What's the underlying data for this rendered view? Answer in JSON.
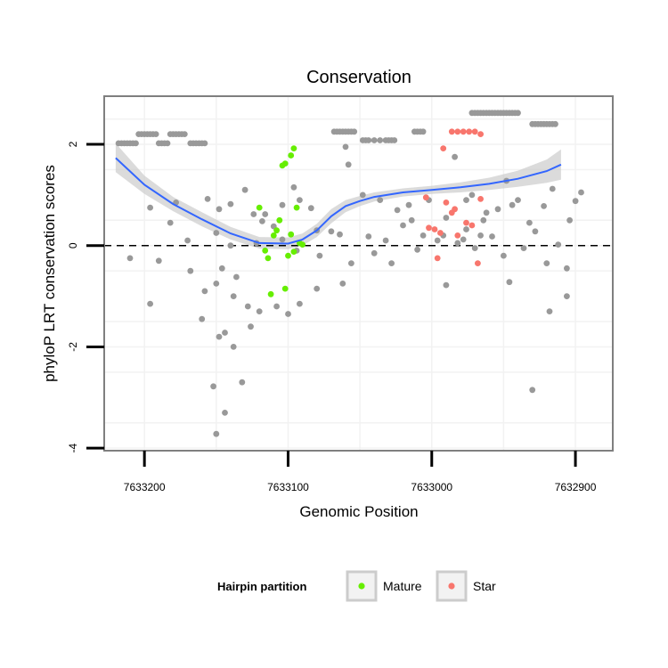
{
  "chart_data": {
    "type": "scatter",
    "title": "Conservation",
    "xlabel": "Genomic Position",
    "ylabel": "phyloP LRT conservation scores",
    "x_reversed": true,
    "xlim": [
      7633228,
      7632874
    ],
    "ylim": [
      -4.05,
      2.95
    ],
    "x_ticks": [
      7633200,
      7633100,
      7633000,
      7632900
    ],
    "x_tick_labels": [
      "7633200",
      "7633100",
      "7633000",
      "7632900"
    ],
    "y_ticks": [
      2,
      0,
      -2,
      -4
    ],
    "y_tick_labels": [
      "2",
      "0",
      "-2",
      "-4"
    ],
    "reference_line": {
      "y": 0,
      "style": "dashed"
    },
    "colors": {
      "other": "#999999",
      "Mature": "#66ee00",
      "Star": "#f8766d",
      "smooth": "#3366ff",
      "band": "#cccccc",
      "panel_border": "#7f7f7f"
    },
    "legend": {
      "title": "Hairpin partition",
      "position": "bottom",
      "entries": [
        "Mature",
        "Star"
      ]
    },
    "smooth": {
      "x": [
        7633220,
        7633200,
        7633180,
        7633160,
        7633140,
        7633120,
        7633100,
        7633090,
        7633080,
        7633070,
        7633060,
        7633050,
        7633040,
        7633020,
        7633000,
        7632980,
        7632960,
        7632940,
        7632920,
        7632910
      ],
      "y": [
        1.73,
        1.2,
        0.82,
        0.52,
        0.24,
        0.05,
        0.04,
        0.12,
        0.3,
        0.58,
        0.78,
        0.88,
        0.96,
        1.05,
        1.1,
        1.15,
        1.22,
        1.32,
        1.47,
        1.6
      ],
      "lower": [
        1.45,
        1.02,
        0.68,
        0.38,
        0.12,
        -0.06,
        -0.07,
        0.0,
        0.17,
        0.44,
        0.66,
        0.78,
        0.87,
        0.97,
        1.02,
        1.05,
        1.1,
        1.16,
        1.24,
        1.3
      ],
      "upper": [
        2.02,
        1.38,
        0.96,
        0.66,
        0.37,
        0.17,
        0.16,
        0.24,
        0.43,
        0.72,
        0.9,
        0.98,
        1.05,
        1.13,
        1.18,
        1.25,
        1.34,
        1.48,
        1.7,
        1.9
      ]
    },
    "series": [
      {
        "name": "Other",
        "points": [
          [
            7633218,
            2.02
          ],
          [
            7633216,
            2.02
          ],
          [
            7633214,
            2.02
          ],
          [
            7633212,
            2.02
          ],
          [
            7633210,
            2.02
          ],
          [
            7633208,
            2.02
          ],
          [
            7633206,
            2.02
          ],
          [
            7633204,
            2.2
          ],
          [
            7633202,
            2.2
          ],
          [
            7633200,
            2.2
          ],
          [
            7633198,
            2.2
          ],
          [
            7633196,
            2.2
          ],
          [
            7633194,
            2.2
          ],
          [
            7633192,
            2.2
          ],
          [
            7633190,
            2.02
          ],
          [
            7633188,
            2.02
          ],
          [
            7633186,
            2.02
          ],
          [
            7633184,
            2.02
          ],
          [
            7633182,
            2.2
          ],
          [
            7633180,
            2.2
          ],
          [
            7633178,
            2.2
          ],
          [
            7633176,
            2.2
          ],
          [
            7633174,
            2.2
          ],
          [
            7633172,
            2.2
          ],
          [
            7633168,
            2.02
          ],
          [
            7633166,
            2.02
          ],
          [
            7633164,
            2.02
          ],
          [
            7633162,
            2.02
          ],
          [
            7633160,
            2.02
          ],
          [
            7633158,
            2.02
          ],
          [
            7633012,
            2.25
          ],
          [
            7633010,
            2.25
          ],
          [
            7633008,
            2.25
          ],
          [
            7633006,
            2.25
          ],
          [
            7632972,
            2.62
          ],
          [
            7632970,
            2.62
          ],
          [
            7632968,
            2.62
          ],
          [
            7632966,
            2.62
          ],
          [
            7632964,
            2.62
          ],
          [
            7632962,
            2.62
          ],
          [
            7632960,
            2.62
          ],
          [
            7632958,
            2.62
          ],
          [
            7632956,
            2.62
          ],
          [
            7632954,
            2.62
          ],
          [
            7632952,
            2.62
          ],
          [
            7632950,
            2.62
          ],
          [
            7632948,
            2.62
          ],
          [
            7632946,
            2.62
          ],
          [
            7632944,
            2.62
          ],
          [
            7632942,
            2.62
          ],
          [
            7632940,
            2.62
          ],
          [
            7632930,
            2.4
          ],
          [
            7632928,
            2.4
          ],
          [
            7632926,
            2.4
          ],
          [
            7632924,
            2.4
          ],
          [
            7632922,
            2.4
          ],
          [
            7632920,
            2.4
          ],
          [
            7632918,
            2.4
          ],
          [
            7632916,
            2.4
          ],
          [
            7632914,
            2.4
          ],
          [
            7633068,
            2.25
          ],
          [
            7633066,
            2.25
          ],
          [
            7633064,
            2.25
          ],
          [
            7633062,
            2.25
          ],
          [
            7633060,
            2.25
          ],
          [
            7633058,
            2.25
          ],
          [
            7633056,
            2.25
          ],
          [
            7633054,
            2.25
          ],
          [
            7633048,
            2.08
          ],
          [
            7633046,
            2.08
          ],
          [
            7633044,
            2.08
          ],
          [
            7633040,
            2.08
          ],
          [
            7633036,
            2.08
          ],
          [
            7633032,
            2.08
          ],
          [
            7633030,
            2.08
          ],
          [
            7633028,
            2.08
          ],
          [
            7633026,
            2.08
          ],
          [
            7633140,
            0.82
          ],
          [
            7633148,
            0.72
          ],
          [
            7633124,
            0.62
          ],
          [
            7633118,
            0.48
          ],
          [
            7633110,
            0.38
          ],
          [
            7633080,
            0.3
          ],
          [
            7633064,
            0.22
          ],
          [
            7633020,
            0.4
          ],
          [
            7633044,
            0.18
          ],
          [
            7633032,
            0.1
          ],
          [
            7632990,
            0.55
          ],
          [
            7632976,
            0.32
          ],
          [
            7632964,
            0.5
          ],
          [
            7632958,
            0.18
          ],
          [
            7632944,
            0.8
          ],
          [
            7632928,
            0.28
          ],
          [
            7632916,
            1.12
          ],
          [
            7632900,
            0.88
          ],
          [
            7632948,
            1.28
          ],
          [
            7632984,
            1.75
          ],
          [
            7633060,
            1.95
          ],
          [
            7633058,
            1.6
          ],
          [
            7633096,
            1.15
          ],
          [
            7633130,
            1.1
          ],
          [
            7633156,
            0.92
          ],
          [
            7633178,
            0.85
          ],
          [
            7633196,
            0.75
          ],
          [
            7633182,
            0.45
          ],
          [
            7633170,
            0.1
          ],
          [
            7633150,
            0.25
          ],
          [
            7633140,
            0.0
          ],
          [
            7633122,
            0.05
          ],
          [
            7633104,
            0.12
          ],
          [
            7633094,
            -0.1
          ],
          [
            7633078,
            -0.2
          ],
          [
            7633056,
            -0.35
          ],
          [
            7633040,
            -0.15
          ],
          [
            7633010,
            -0.08
          ],
          [
            7632996,
            0.1
          ],
          [
            7632982,
            0.05
          ],
          [
            7632970,
            -0.05
          ],
          [
            7632950,
            -0.2
          ],
          [
            7632936,
            -0.05
          ],
          [
            7632920,
            -0.35
          ],
          [
            7632906,
            -0.45
          ],
          [
            7633210,
            -0.25
          ],
          [
            7633190,
            -0.3
          ],
          [
            7633196,
            -1.15
          ],
          [
            7633168,
            -0.5
          ],
          [
            7633158,
            -0.9
          ],
          [
            7633150,
            -0.75
          ],
          [
            7633138,
            -1.0
          ],
          [
            7633128,
            -1.2
          ],
          [
            7633120,
            -1.3
          ],
          [
            7633108,
            -1.2
          ],
          [
            7633100,
            -1.35
          ],
          [
            7633092,
            -1.15
          ],
          [
            7633080,
            -0.85
          ],
          [
            7633062,
            -0.75
          ],
          [
            7633028,
            -0.35
          ],
          [
            7632990,
            -0.78
          ],
          [
            7632946,
            -0.72
          ],
          [
            7632906,
            -1.0
          ],
          [
            7632918,
            -1.3
          ],
          [
            7633146,
            -0.45
          ],
          [
            7633136,
            -0.62
          ],
          [
            7633160,
            -1.45
          ],
          [
            7633148,
            -1.8
          ],
          [
            7633144,
            -1.72
          ],
          [
            7633138,
            -2.0
          ],
          [
            7633126,
            -1.6
          ],
          [
            7633152,
            -2.78
          ],
          [
            7633132,
            -2.7
          ],
          [
            7633144,
            -3.3
          ],
          [
            7633150,
            -3.72
          ],
          [
            7632930,
            -2.85
          ],
          [
            7633116,
            0.62
          ],
          [
            7633104,
            0.8
          ],
          [
            7633092,
            0.9
          ],
          [
            7633084,
            0.74
          ],
          [
            7633070,
            0.28
          ],
          [
            7633048,
            1.0
          ],
          [
            7633036,
            0.9
          ],
          [
            7633024,
            0.7
          ],
          [
            7633016,
            0.8
          ],
          [
            7633002,
            0.9
          ],
          [
            7632992,
            0.2
          ],
          [
            7632978,
            0.12
          ],
          [
            7632962,
            0.65
          ],
          [
            7632954,
            0.72
          ],
          [
            7632940,
            0.9
          ],
          [
            7632932,
            0.45
          ],
          [
            7632922,
            0.78
          ],
          [
            7632912,
            0.02
          ],
          [
            7632896,
            1.05
          ],
          [
            7632904,
            0.5
          ],
          [
            7632972,
            1.0
          ],
          [
            7633014,
            0.5
          ],
          [
            7633006,
            0.2
          ],
          [
            7632976,
            0.9
          ],
          [
            7632966,
            0.2
          ]
        ]
      },
      {
        "name": "Mature",
        "points": [
          [
            7633120,
            0.75
          ],
          [
            7633116,
            -0.1
          ],
          [
            7633114,
            -0.25
          ],
          [
            7633110,
            0.2
          ],
          [
            7633108,
            0.3
          ],
          [
            7633106,
            0.5
          ],
          [
            7633104,
            1.58
          ],
          [
            7633102,
            1.62
          ],
          [
            7633098,
            1.78
          ],
          [
            7633096,
            1.92
          ],
          [
            7633094,
            0.75
          ],
          [
            7633090,
            0.02
          ],
          [
            7633112,
            -0.96
          ],
          [
            7633102,
            -0.85
          ],
          [
            7633100,
            -0.2
          ],
          [
            7633096,
            -0.12
          ],
          [
            7633092,
            0.05
          ],
          [
            7633098,
            0.22
          ]
        ]
      },
      {
        "name": "Star",
        "points": [
          [
            7633002,
            0.35
          ],
          [
            7632998,
            0.32
          ],
          [
            7632994,
            0.25
          ],
          [
            7632990,
            0.85
          ],
          [
            7632986,
            0.65
          ],
          [
            7632982,
            0.2
          ],
          [
            7632976,
            0.45
          ],
          [
            7632972,
            0.4
          ],
          [
            7632968,
            -0.35
          ],
          [
            7632996,
            -0.25
          ],
          [
            7633004,
            0.95
          ],
          [
            7632984,
            0.72
          ],
          [
            7632992,
            1.92
          ],
          [
            7632966,
            0.92
          ],
          [
            7632986,
            2.25
          ],
          [
            7632982,
            2.25
          ],
          [
            7632978,
            2.25
          ],
          [
            7632974,
            2.25
          ],
          [
            7632970,
            2.25
          ],
          [
            7632966,
            2.2
          ]
        ]
      }
    ]
  }
}
